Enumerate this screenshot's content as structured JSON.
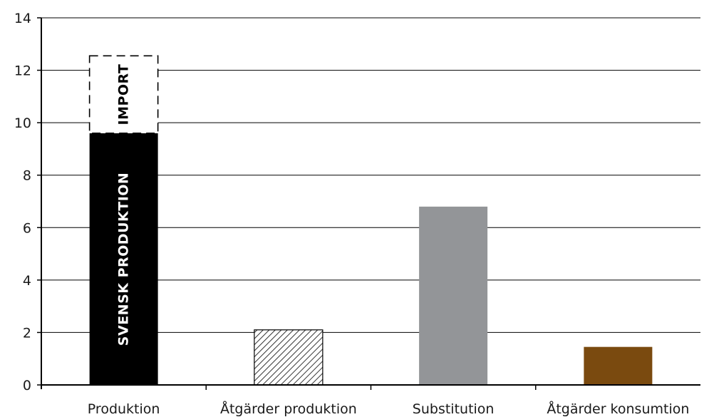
{
  "chart_data": {
    "type": "bar",
    "title": "",
    "xlabel": "",
    "ylabel": "",
    "ylim": [
      0,
      14
    ],
    "yticks": [
      0,
      2,
      4,
      6,
      8,
      10,
      12,
      14
    ],
    "grid": true,
    "categories": [
      "Produktion",
      "Åtgärder produktion",
      "Substitution",
      "Åtgärder konsumtion"
    ],
    "bars": [
      {
        "category": "Produktion",
        "segments": [
          {
            "label": "SVENSK PRODUKTION",
            "value": 9.6,
            "style": "solid",
            "color": "#000000",
            "text_color": "#ffffff"
          },
          {
            "label": "IMPORT",
            "value": 2.95,
            "style": "dashed-outline",
            "color": "#ffffff",
            "text_color": "#000000"
          }
        ]
      },
      {
        "category": "Åtgärder produktion",
        "segments": [
          {
            "label": "",
            "value": 2.1,
            "style": "hatched",
            "color": "#000000"
          }
        ]
      },
      {
        "category": "Substitution",
        "segments": [
          {
            "label": "",
            "value": 6.8,
            "style": "solid",
            "color": "#939598"
          }
        ]
      },
      {
        "category": "Åtgärder konsumtion",
        "segments": [
          {
            "label": "",
            "value": 1.45,
            "style": "solid",
            "color": "#7a4a0f"
          }
        ]
      }
    ]
  }
}
